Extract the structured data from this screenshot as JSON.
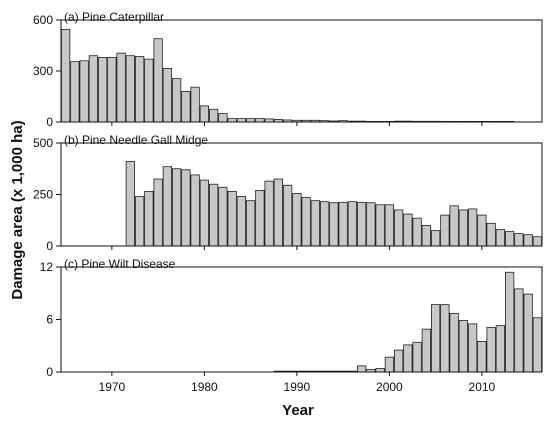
{
  "figure": {
    "ylabel": "Damage area (x 1,000 ha)",
    "xlabel": "Year",
    "x_ticks": [
      1970,
      1980,
      1990,
      2000,
      2010
    ]
  },
  "chart_data": [
    {
      "type": "bar",
      "title": "(a) Pine Caterpillar",
      "ylim": [
        0,
        600
      ],
      "yticks": [
        0,
        300,
        600
      ],
      "xlim": [
        1965,
        2016
      ],
      "x": [
        1965,
        1966,
        1967,
        1968,
        1969,
        1970,
        1971,
        1972,
        1973,
        1974,
        1975,
        1976,
        1977,
        1978,
        1979,
        1980,
        1981,
        1982,
        1983,
        1984,
        1985,
        1986,
        1987,
        1988,
        1989,
        1990,
        1991,
        1992,
        1993,
        1994,
        1995,
        1996,
        1997,
        1998,
        1999,
        2000,
        2001,
        2002,
        2003,
        2004,
        2005,
        2006,
        2007,
        2008,
        2009,
        2010,
        2011,
        2012,
        2013
      ],
      "values": [
        545,
        355,
        360,
        390,
        380,
        380,
        405,
        390,
        385,
        370,
        490,
        315,
        255,
        180,
        205,
        95,
        75,
        50,
        20,
        20,
        20,
        20,
        18,
        15,
        12,
        10,
        10,
        10,
        8,
        6,
        8,
        5,
        5,
        3,
        2,
        3,
        5,
        5,
        4,
        4,
        4,
        3,
        3,
        3,
        3,
        3,
        3,
        3,
        2
      ]
    },
    {
      "type": "bar",
      "title": "(b) Pine Needle Gall Midge",
      "ylim": [
        0,
        500
      ],
      "yticks": [
        0,
        250,
        500
      ],
      "xlim": [
        1965,
        2016
      ],
      "x": [
        1972,
        1973,
        1974,
        1975,
        1976,
        1977,
        1978,
        1979,
        1980,
        1981,
        1982,
        1983,
        1984,
        1985,
        1986,
        1987,
        1988,
        1989,
        1990,
        1991,
        1992,
        1993,
        1994,
        1995,
        1996,
        1997,
        1998,
        1999,
        2000,
        2001,
        2002,
        2003,
        2004,
        2005,
        2006,
        2007,
        2008,
        2009,
        2010,
        2011,
        2012,
        2013,
        2014,
        2015,
        2016
      ],
      "values": [
        410,
        240,
        265,
        325,
        385,
        375,
        370,
        345,
        320,
        300,
        285,
        265,
        240,
        220,
        270,
        315,
        325,
        295,
        255,
        235,
        220,
        215,
        210,
        212,
        215,
        212,
        210,
        200,
        200,
        175,
        155,
        135,
        100,
        75,
        150,
        195,
        175,
        180,
        150,
        110,
        80,
        70,
        60,
        55,
        45
      ]
    },
    {
      "type": "bar",
      "title": "(c) Pine Wilt Disease",
      "ylim": [
        0,
        12
      ],
      "yticks": [
        0,
        6,
        12
      ],
      "xlim": [
        1965,
        2016
      ],
      "x": [
        1988,
        1989,
        1990,
        1991,
        1992,
        1993,
        1994,
        1995,
        1996,
        1997,
        1998,
        1999,
        2000,
        2001,
        2002,
        2003,
        2004,
        2005,
        2006,
        2007,
        2008,
        2009,
        2010,
        2011,
        2012,
        2013,
        2014,
        2015,
        2016
      ],
      "values": [
        0.1,
        0.1,
        0.1,
        0.1,
        0.1,
        0.1,
        0.1,
        0.1,
        0.1,
        0.7,
        0.3,
        0.4,
        1.7,
        2.5,
        3.1,
        3.4,
        4.9,
        7.7,
        7.7,
        6.7,
        5.9,
        5.5,
        3.5,
        5.1,
        5.3,
        11.4,
        9.5,
        8.9,
        6.2
      ]
    }
  ]
}
